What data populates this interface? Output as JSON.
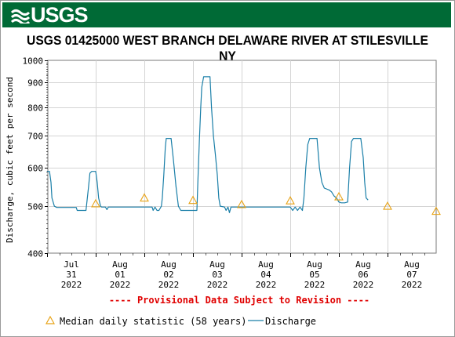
{
  "banner": {
    "logo_text": "USGS"
  },
  "chart_data": {
    "type": "line",
    "title": "USGS 01425000 WEST BRANCH DELAWARE RIVER AT STILESVILLE NY",
    "ylabel": "Discharge, cubic feet per second",
    "xlabel": "",
    "y_scale": "log",
    "ylim": [
      400,
      1000
    ],
    "y_ticks": [
      {
        "value": 400,
        "label": "400"
      },
      {
        "value": 500,
        "label": "500"
      },
      {
        "value": 600,
        "label": "600"
      },
      {
        "value": 700,
        "label": "700"
      },
      {
        "value": 800,
        "label": "800"
      },
      {
        "value": 900,
        "label": "900"
      },
      {
        "value": 1000,
        "label": "1000"
      }
    ],
    "x_range": [
      "2022-07-31 00:00",
      "2022-08-08 00:00"
    ],
    "x_ticks": [
      {
        "day": 0,
        "month": "Jul",
        "date": "31",
        "year": "2022"
      },
      {
        "day": 1,
        "month": "Aug",
        "date": "01",
        "year": "2022"
      },
      {
        "day": 2,
        "month": "Aug",
        "date": "02",
        "year": "2022"
      },
      {
        "day": 3,
        "month": "Aug",
        "date": "03",
        "year": "2022"
      },
      {
        "day": 4,
        "month": "Aug",
        "date": "04",
        "year": "2022"
      },
      {
        "day": 5,
        "month": "Aug",
        "date": "05",
        "year": "2022"
      },
      {
        "day": 6,
        "month": "Aug",
        "date": "06",
        "year": "2022"
      },
      {
        "day": 7,
        "month": "Aug",
        "date": "07",
        "year": "2022"
      }
    ],
    "grid": true,
    "series": [
      {
        "name": "Discharge",
        "color": "#1a7fa8",
        "points": [
          [
            -0.5,
            590
          ],
          [
            -0.45,
            590
          ],
          [
            -0.42,
            560
          ],
          [
            -0.4,
            520
          ],
          [
            -0.35,
            500
          ],
          [
            -0.3,
            497
          ],
          [
            -0.2,
            497
          ],
          [
            -0.1,
            497
          ],
          [
            0.0,
            497
          ],
          [
            0.1,
            497
          ],
          [
            0.12,
            490
          ],
          [
            0.2,
            490
          ],
          [
            0.3,
            490
          ],
          [
            0.35,
            545
          ],
          [
            0.38,
            585
          ],
          [
            0.42,
            590
          ],
          [
            0.5,
            590
          ],
          [
            0.53,
            560
          ],
          [
            0.56,
            520
          ],
          [
            0.6,
            500
          ],
          [
            0.62,
            498
          ],
          [
            0.7,
            498
          ],
          [
            0.73,
            492
          ],
          [
            0.76,
            498
          ],
          [
            0.85,
            498
          ],
          [
            1.0,
            498
          ],
          [
            1.2,
            498
          ],
          [
            1.5,
            498
          ],
          [
            1.66,
            498
          ],
          [
            1.68,
            490
          ],
          [
            1.72,
            498
          ],
          [
            1.76,
            490
          ],
          [
            1.8,
            490
          ],
          [
            1.85,
            500
          ],
          [
            1.87,
            520
          ],
          [
            1.9,
            580
          ],
          [
            1.93,
            660
          ],
          [
            1.95,
            690
          ],
          [
            2.0,
            690
          ],
          [
            2.05,
            690
          ],
          [
            2.1,
            620
          ],
          [
            2.15,
            550
          ],
          [
            2.2,
            500
          ],
          [
            2.25,
            490
          ],
          [
            2.3,
            490
          ],
          [
            2.4,
            490
          ],
          [
            2.5,
            490
          ],
          [
            2.58,
            490
          ],
          [
            2.6,
            560
          ],
          [
            2.63,
            680
          ],
          [
            2.66,
            800
          ],
          [
            2.68,
            880
          ],
          [
            2.72,
            925
          ],
          [
            2.85,
            925
          ],
          [
            2.88,
            800
          ],
          [
            2.92,
            700
          ],
          [
            2.96,
            640
          ],
          [
            3.0,
            580
          ],
          [
            3.03,
            520
          ],
          [
            3.06,
            500
          ],
          [
            3.15,
            498
          ],
          [
            3.18,
            490
          ],
          [
            3.22,
            498
          ],
          [
            3.25,
            485
          ],
          [
            3.28,
            498
          ],
          [
            3.35,
            498
          ],
          [
            3.5,
            498
          ],
          [
            4.0,
            498
          ],
          [
            4.5,
            498
          ],
          [
            4.55,
            490
          ],
          [
            4.6,
            498
          ],
          [
            4.65,
            490
          ],
          [
            4.7,
            498
          ],
          [
            4.75,
            490
          ],
          [
            4.78,
            520
          ],
          [
            4.82,
            600
          ],
          [
            4.86,
            670
          ],
          [
            4.9,
            690
          ],
          [
            5.05,
            690
          ],
          [
            5.1,
            600
          ],
          [
            5.15,
            560
          ],
          [
            5.2,
            545
          ],
          [
            5.3,
            540
          ],
          [
            5.35,
            535
          ],
          [
            5.4,
            525
          ],
          [
            5.45,
            520
          ],
          [
            5.5,
            510
          ],
          [
            5.55,
            508
          ],
          [
            5.62,
            508
          ],
          [
            5.68,
            510
          ],
          [
            5.72,
            600
          ],
          [
            5.76,
            680
          ],
          [
            5.8,
            690
          ],
          [
            5.95,
            690
          ],
          [
            6.0,
            630
          ],
          [
            6.03,
            560
          ],
          [
            6.06,
            520
          ],
          [
            6.1,
            515
          ]
        ]
      }
    ],
    "median_daily": {
      "name": "Median daily statistic (58 years)",
      "color": "#e8a317",
      "points": [
        [
          -0.5,
          506
        ],
        [
          0.5,
          520
        ],
        [
          1.5,
          514
        ],
        [
          2.5,
          504
        ],
        [
          3.5,
          513
        ],
        [
          4.5,
          523
        ],
        [
          5.5,
          500
        ],
        [
          6.5,
          488
        ]
      ]
    }
  },
  "footer": {
    "provisional": "---- Provisional Data Subject to Revision ----",
    "legend_median": "Median daily statistic (58 years)",
    "legend_discharge": "Discharge"
  }
}
